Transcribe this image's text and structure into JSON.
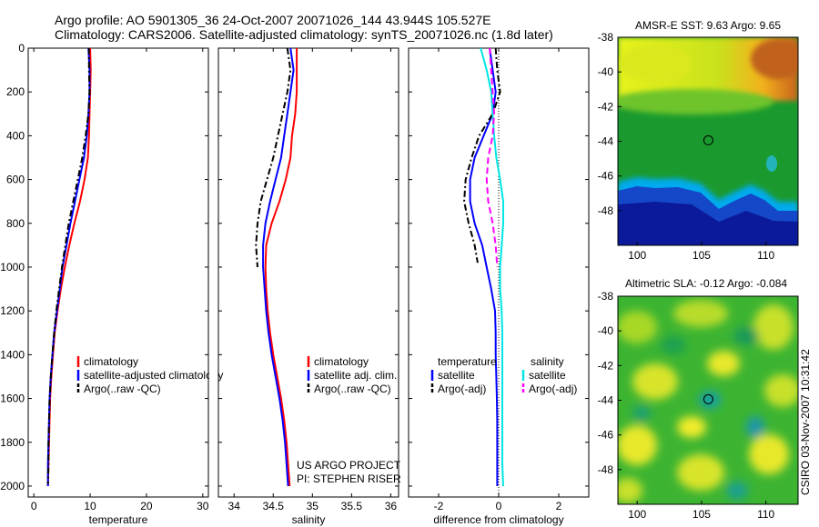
{
  "header": {
    "line1": "Argo profile: AO 5901305_36 24-Oct-2007 20071026_144 43.944S 105.527E",
    "line2": "Climatology: CARS2006. Satellite-adjusted climatology: synTS_20071026.nc (1.8d later)"
  },
  "side_label": "CSIRO 03-Nov-2007 10:31:42",
  "colors": {
    "climatology": "#ff0000",
    "satellite": "#0000ff",
    "argo": "#000000",
    "sat_salinity": "#00e5e5",
    "argo_salinity": "#ff00ff"
  },
  "chart_data": [
    {
      "type": "line",
      "id": "temperature",
      "xlabel": "temperature",
      "xlim": [
        -1,
        31
      ],
      "ylim": [
        0,
        2050
      ],
      "x_ticks": [
        "0",
        "10",
        "20",
        "30"
      ],
      "y_ticks": [
        "0",
        "200",
        "400",
        "600",
        "800",
        "1000",
        "1200",
        "1400",
        "1600",
        "1800",
        "2000"
      ],
      "series": [
        {
          "name": "climatology",
          "color": "#ff0000",
          "style": "solid",
          "points": [
            [
              10.0,
              0
            ],
            [
              10.1,
              100
            ],
            [
              10.0,
              200
            ],
            [
              9.9,
              300
            ],
            [
              9.8,
              400
            ],
            [
              9.6,
              500
            ],
            [
              9.0,
              600
            ],
            [
              8.2,
              700
            ],
            [
              7.2,
              800
            ],
            [
              6.3,
              900
            ],
            [
              5.5,
              1000
            ],
            [
              4.8,
              1100
            ],
            [
              4.2,
              1200
            ],
            [
              3.7,
              1300
            ],
            [
              3.4,
              1400
            ],
            [
              3.1,
              1500
            ],
            [
              2.9,
              1600
            ],
            [
              2.8,
              1700
            ],
            [
              2.7,
              1800
            ],
            [
              2.6,
              1900
            ],
            [
              2.5,
              2000
            ]
          ]
        },
        {
          "name": "satellite-adjusted climatology",
          "color": "#0000ff",
          "style": "solid",
          "points": [
            [
              9.7,
              0
            ],
            [
              9.9,
              100
            ],
            [
              9.9,
              200
            ],
            [
              9.7,
              300
            ],
            [
              9.4,
              400
            ],
            [
              8.9,
              500
            ],
            [
              8.1,
              600
            ],
            [
              7.3,
              700
            ],
            [
              6.5,
              800
            ],
            [
              5.8,
              900
            ],
            [
              5.1,
              1000
            ],
            [
              4.6,
              1100
            ],
            [
              4.1,
              1200
            ],
            [
              3.6,
              1300
            ],
            [
              3.3,
              1400
            ],
            [
              3.0,
              1500
            ],
            [
              2.8,
              1600
            ],
            [
              2.7,
              1700
            ],
            [
              2.6,
              1800
            ],
            [
              2.5,
              1900
            ],
            [
              2.5,
              2000
            ]
          ]
        },
        {
          "name": "Argo(..raw -QC)",
          "color": "#000000",
          "style": "dashdot",
          "points": [
            [
              9.8,
              0
            ],
            [
              9.8,
              100
            ],
            [
              9.9,
              200
            ],
            [
              9.7,
              300
            ],
            [
              9.2,
              400
            ],
            [
              8.6,
              500
            ],
            [
              7.8,
              600
            ],
            [
              7.0,
              700
            ],
            [
              6.2,
              800
            ],
            [
              5.6,
              900
            ],
            [
              5.0,
              1000
            ],
            [
              4.5,
              1100
            ],
            [
              4.0,
              1200
            ],
            [
              3.6,
              1300
            ],
            [
              3.3,
              1400
            ],
            [
              3.0,
              1500
            ],
            [
              2.8,
              1600
            ],
            [
              2.7,
              1700
            ],
            [
              2.6,
              1800
            ],
            [
              2.6,
              1900
            ],
            [
              2.5,
              1990
            ]
          ]
        }
      ],
      "legend": {
        "position": "bottom-left",
        "labels": [
          "climatology",
          "satellite-adjusted climatology",
          "Argo(..raw -QC)"
        ]
      }
    },
    {
      "type": "line",
      "id": "salinity",
      "xlabel": "salinity",
      "xlim": [
        33.8,
        36.1
      ],
      "ylim": [
        0,
        2050
      ],
      "x_ticks": [
        "34",
        "34.5",
        "35",
        "35.5",
        "36"
      ],
      "series": [
        {
          "name": "climatology",
          "color": "#ff0000",
          "style": "solid",
          "points": [
            [
              34.8,
              0
            ],
            [
              34.8,
              100
            ],
            [
              34.8,
              200
            ],
            [
              34.78,
              300
            ],
            [
              34.74,
              400
            ],
            [
              34.72,
              500
            ],
            [
              34.66,
              600
            ],
            [
              34.58,
              700
            ],
            [
              34.48,
              800
            ],
            [
              34.41,
              900
            ],
            [
              34.4,
              1000
            ],
            [
              34.41,
              1100
            ],
            [
              34.43,
              1200
            ],
            [
              34.46,
              1300
            ],
            [
              34.5,
              1400
            ],
            [
              34.55,
              1500
            ],
            [
              34.6,
              1600
            ],
            [
              34.64,
              1700
            ],
            [
              34.67,
              1800
            ],
            [
              34.69,
              1900
            ],
            [
              34.71,
              2000
            ]
          ]
        },
        {
          "name": "satellite adj. clim.",
          "color": "#0000ff",
          "style": "solid",
          "points": [
            [
              34.72,
              0
            ],
            [
              34.76,
              100
            ],
            [
              34.72,
              200
            ],
            [
              34.68,
              300
            ],
            [
              34.64,
              400
            ],
            [
              34.6,
              500
            ],
            [
              34.53,
              600
            ],
            [
              34.46,
              700
            ],
            [
              34.4,
              800
            ],
            [
              34.37,
              900
            ],
            [
              34.37,
              1000
            ],
            [
              34.39,
              1100
            ],
            [
              34.41,
              1200
            ],
            [
              34.44,
              1300
            ],
            [
              34.48,
              1400
            ],
            [
              34.53,
              1500
            ],
            [
              34.58,
              1600
            ],
            [
              34.62,
              1700
            ],
            [
              34.65,
              1800
            ],
            [
              34.67,
              1900
            ],
            [
              34.69,
              2000
            ]
          ]
        },
        {
          "name": "Argo(..raw -QC)",
          "color": "#000000",
          "style": "dashdot",
          "points": [
            [
              34.68,
              0
            ],
            [
              34.72,
              100
            ],
            [
              34.68,
              200
            ],
            [
              34.62,
              300
            ],
            [
              34.56,
              400
            ],
            [
              34.5,
              500
            ],
            [
              34.42,
              600
            ],
            [
              34.34,
              700
            ],
            [
              34.3,
              800
            ],
            [
              34.28,
              900
            ],
            [
              34.3,
              1000
            ]
          ]
        }
      ],
      "legend": {
        "position": "bottom-left",
        "labels": [
          "climatology",
          "satellite adj. clim.",
          "Argo(..raw -QC)"
        ]
      },
      "annotation": [
        "US ARGO PROJECT",
        "PI: STEPHEN RISER"
      ]
    },
    {
      "type": "line",
      "id": "difference",
      "xlabel": "difference from climatology",
      "xlim": [
        -3,
        3
      ],
      "ylim": [
        0,
        2050
      ],
      "x_ticks": [
        "-2",
        "0",
        "2"
      ],
      "reference_line": {
        "x": 0,
        "style": "dotted"
      },
      "series": [
        {
          "name": "temperature satellite",
          "color": "#0000ff",
          "style": "solid",
          "points": [
            [
              -0.3,
              0
            ],
            [
              -0.2,
              100
            ],
            [
              -0.1,
              200
            ],
            [
              -0.2,
              300
            ],
            [
              -0.5,
              400
            ],
            [
              -0.8,
              500
            ],
            [
              -0.95,
              600
            ],
            [
              -0.95,
              700
            ],
            [
              -0.8,
              800
            ],
            [
              -0.55,
              900
            ],
            [
              -0.4,
              1000
            ],
            [
              -0.25,
              1100
            ],
            [
              -0.12,
              1200
            ],
            [
              -0.1,
              1300
            ],
            [
              -0.1,
              1400
            ],
            [
              -0.08,
              1500
            ],
            [
              -0.06,
              1600
            ],
            [
              -0.05,
              1700
            ],
            [
              -0.05,
              1800
            ],
            [
              -0.05,
              1900
            ],
            [
              -0.05,
              2000
            ]
          ]
        },
        {
          "name": "temperature Argo(-adj)",
          "color": "#000000",
          "style": "dashdot",
          "points": [
            [
              -0.1,
              0
            ],
            [
              -0.05,
              100
            ],
            [
              0.05,
              200
            ],
            [
              -0.2,
              300
            ],
            [
              -0.65,
              400
            ],
            [
              -0.9,
              500
            ],
            [
              -1.1,
              600
            ],
            [
              -1.15,
              700
            ],
            [
              -1.0,
              800
            ],
            [
              -0.8,
              900
            ],
            [
              -0.7,
              980
            ]
          ]
        },
        {
          "name": "salinity satellite",
          "color": "#00e5e5",
          "style": "solid",
          "points": [
            [
              -0.6,
              0
            ],
            [
              -0.4,
              100
            ],
            [
              -0.25,
              200
            ],
            [
              -0.2,
              300
            ],
            [
              -0.15,
              400
            ],
            [
              -0.08,
              500
            ],
            [
              0.05,
              600
            ],
            [
              0.15,
              700
            ],
            [
              0.15,
              800
            ],
            [
              0.1,
              900
            ],
            [
              0.05,
              1000
            ],
            [
              0.05,
              1100
            ],
            [
              0.1,
              1200
            ],
            [
              0.12,
              1300
            ],
            [
              0.12,
              1400
            ],
            [
              0.12,
              1500
            ],
            [
              0.12,
              1600
            ],
            [
              0.12,
              1700
            ],
            [
              0.12,
              1800
            ],
            [
              0.12,
              1900
            ],
            [
              0.15,
              2000
            ]
          ]
        },
        {
          "name": "salinity Argo(-adj)",
          "color": "#ff00ff",
          "style": "dashed",
          "points": [
            [
              -0.3,
              0
            ],
            [
              -0.25,
              100
            ],
            [
              -0.2,
              200
            ],
            [
              -0.15,
              300
            ],
            [
              -0.2,
              400
            ],
            [
              -0.35,
              500
            ],
            [
              -0.4,
              600
            ],
            [
              -0.35,
              700
            ],
            [
              -0.2,
              800
            ],
            [
              -0.1,
              900
            ],
            [
              -0.05,
              1000
            ]
          ]
        }
      ],
      "legend": {
        "position": "bottom-left",
        "headers": [
          "temperature",
          "salinity"
        ],
        "labels": [
          "satellite",
          "Argo(-adj)",
          "satellite",
          "Argo(-adj)"
        ]
      }
    },
    {
      "type": "heatmap",
      "id": "sst_map",
      "title": "AMSR-E SST: 9.63 Argo: 9.65",
      "xlim": [
        98.5,
        112.5
      ],
      "ylim": [
        -50,
        -38
      ],
      "x_ticks": [
        "100",
        "105",
        "110"
      ],
      "y_ticks": [
        "-38",
        "-40",
        "-42",
        "-44",
        "-46",
        "-48"
      ],
      "marker": {
        "lon": 105.527,
        "lat": -43.944
      }
    },
    {
      "type": "heatmap",
      "id": "sla_map",
      "title": "Altimetric SLA: -0.12 Argo: -0.084",
      "xlim": [
        98.5,
        112.5
      ],
      "ylim": [
        -50,
        -38
      ],
      "x_ticks": [
        "100",
        "105",
        "110"
      ],
      "y_ticks": [
        "-38",
        "-40",
        "-42",
        "-44",
        "-46",
        "-48"
      ],
      "marker": {
        "lon": 105.527,
        "lat": -43.944
      }
    }
  ]
}
